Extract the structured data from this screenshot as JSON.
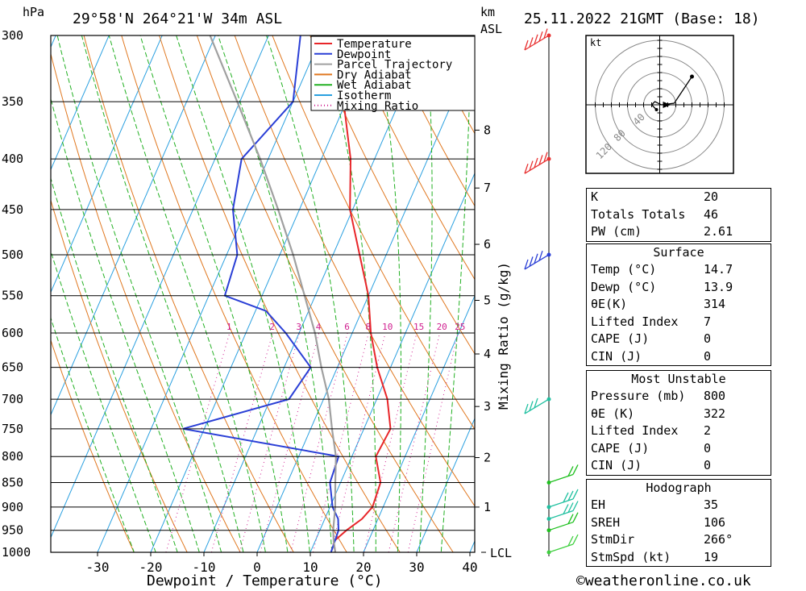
{
  "header": {
    "pressure_unit": "hPa",
    "location": "29°58'N  264°21'W  34m  ASL",
    "height_unit": "km",
    "height_unit2": "ASL",
    "datetime": "25.11.2022  21GMT  (Base: 18)"
  },
  "chart_data": {
    "type": "line",
    "title": "",
    "xlabel": "Dewpoint / Temperature (°C)",
    "ylabel": "hPa",
    "right_label": "Mixing Ratio (g/kg)",
    "xlim": [
      -40,
      40
    ],
    "ylim_pressure": [
      1000,
      300
    ],
    "skew": "skew-T log-P",
    "pressure_ticks": [
      300,
      350,
      400,
      450,
      500,
      550,
      600,
      650,
      700,
      750,
      800,
      850,
      900,
      950,
      1000
    ],
    "temp_ticks": [
      -30,
      -20,
      -10,
      0,
      10,
      20,
      30,
      40
    ],
    "km_ticks": [
      {
        "label": "1",
        "p": 900
      },
      {
        "label": "2",
        "p": 802
      },
      {
        "label": "3",
        "p": 712
      },
      {
        "label": "4",
        "p": 630
      },
      {
        "label": "5",
        "p": 556
      },
      {
        "label": "6",
        "p": 488
      },
      {
        "label": "7",
        "p": 428
      },
      {
        "label": "8",
        "p": 374
      }
    ],
    "lcl_label": "LCL",
    "mixing_ratio_labels": [
      "1",
      "2",
      "3",
      "4",
      "6",
      "8",
      "10",
      "15",
      "20",
      "25"
    ],
    "legend": [
      {
        "name": "Temperature",
        "color": "#e8262a",
        "style": "solid"
      },
      {
        "name": "Dewpoint",
        "color": "#2a3fd6",
        "style": "solid"
      },
      {
        "name": "Parcel Trajectory",
        "color": "#a0a0a0",
        "style": "solid"
      },
      {
        "name": "Dry Adiabat",
        "color": "#e07820",
        "style": "solid"
      },
      {
        "name": "Wet Adiabat",
        "color": "#22b022",
        "style": "solid"
      },
      {
        "name": "Isotherm",
        "color": "#2aa0e0",
        "style": "solid"
      },
      {
        "name": "Mixing Ratio",
        "color": "#d02090",
        "style": "dotted"
      }
    ],
    "series": [
      {
        "name": "Temperature",
        "color": "#e8262a",
        "points": [
          [
            14.7,
            1000
          ],
          [
            13.5,
            975
          ],
          [
            15.0,
            950
          ],
          [
            17.0,
            925
          ],
          [
            18.0,
            900
          ],
          [
            17.5,
            850
          ],
          [
            14.5,
            800
          ],
          [
            15.0,
            750
          ],
          [
            12.0,
            700
          ],
          [
            7.5,
            650
          ],
          [
            3.5,
            600
          ],
          [
            0.0,
            550
          ],
          [
            -5.0,
            500
          ],
          [
            -10.5,
            450
          ],
          [
            -14.5,
            400
          ],
          [
            -20.5,
            350
          ],
          [
            -29.0,
            300
          ]
        ]
      },
      {
        "name": "Dewpoint",
        "color": "#2a3fd6",
        "points": [
          [
            13.9,
            1000
          ],
          [
            13.5,
            950
          ],
          [
            12.5,
            925
          ],
          [
            10.5,
            900
          ],
          [
            8.0,
            850
          ],
          [
            7.5,
            800
          ],
          [
            -24.0,
            750
          ],
          [
            -6.5,
            700
          ],
          [
            -5.0,
            650
          ],
          [
            -12.5,
            600
          ],
          [
            -18.0,
            570
          ],
          [
            -27.0,
            550
          ],
          [
            -28.0,
            500
          ],
          [
            -32.5,
            450
          ],
          [
            -35.0,
            400
          ],
          [
            -30.0,
            350
          ],
          [
            -34.0,
            300
          ]
        ]
      },
      {
        "name": "Parcel Trajectory",
        "color": "#a0a0a0",
        "points": [
          [
            14.7,
            1000
          ],
          [
            13.5,
            975
          ],
          [
            12.5,
            950
          ],
          [
            11.0,
            900
          ],
          [
            9.0,
            850
          ],
          [
            7.0,
            800
          ],
          [
            4.0,
            750
          ],
          [
            1.0,
            700
          ],
          [
            -3.0,
            650
          ],
          [
            -7.0,
            600
          ],
          [
            -12.0,
            550
          ],
          [
            -17.5,
            500
          ],
          [
            -24.0,
            450
          ],
          [
            -31.5,
            400
          ],
          [
            -40.5,
            350
          ],
          [
            -51.0,
            300
          ]
        ]
      }
    ],
    "wind_barbs_on_profile": [
      "300 hPa",
      "400 hPa",
      "500 hPa",
      "700 hPa",
      "850 hPa",
      "900 hPa",
      "925 hPa",
      "950 hPa",
      "1000 hPa"
    ]
  },
  "hodograph": {
    "unit_label": "kt",
    "ring_labels": [
      "40",
      "80",
      "120"
    ]
  },
  "indices": {
    "general": [
      {
        "k": "K",
        "v": "20"
      },
      {
        "k": "Totals Totals",
        "v": "46"
      },
      {
        "k": "PW (cm)",
        "v": "2.61"
      }
    ],
    "surface": {
      "title": "Surface",
      "rows": [
        {
          "k": "Temp (°C)",
          "v": "14.7"
        },
        {
          "k": "Dewp (°C)",
          "v": "13.9"
        },
        {
          "k": "θE(K)",
          "v": "314"
        },
        {
          "k": "Lifted Index",
          "v": "7"
        },
        {
          "k": "CAPE (J)",
          "v": "0"
        },
        {
          "k": "CIN (J)",
          "v": "0"
        }
      ]
    },
    "most_unstable": {
      "title": "Most Unstable",
      "rows": [
        {
          "k": "Pressure (mb)",
          "v": "800"
        },
        {
          "k": "θE (K)",
          "v": "322"
        },
        {
          "k": "Lifted Index",
          "v": "2"
        },
        {
          "k": "CAPE (J)",
          "v": "0"
        },
        {
          "k": "CIN (J)",
          "v": "0"
        }
      ]
    },
    "hodograph": {
      "title": "Hodograph",
      "rows": [
        {
          "k": "EH",
          "v": "35"
        },
        {
          "k": "SREH",
          "v": "106"
        },
        {
          "k": "StmDir",
          "v": "266°"
        },
        {
          "k": "StmSpd (kt)",
          "v": "19"
        }
      ]
    }
  },
  "footer": {
    "url": "©weatheronline.co.uk"
  }
}
